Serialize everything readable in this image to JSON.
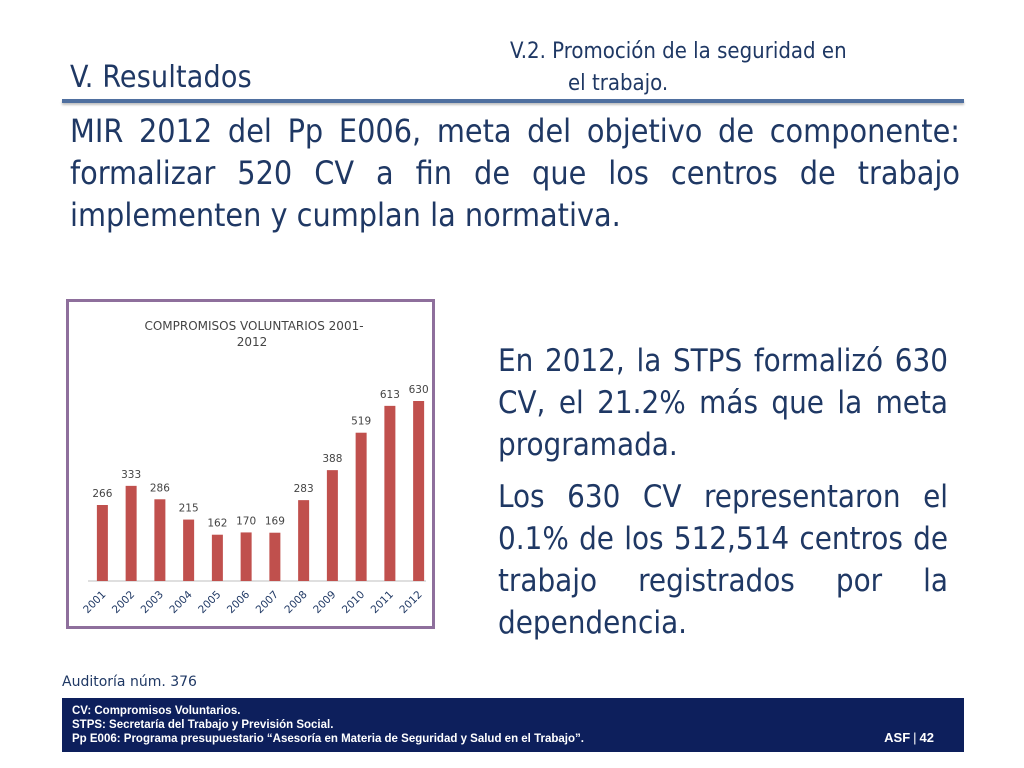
{
  "header": {
    "section_title": "V. Resultados",
    "subtitle_line1": "V.2. Promoción de la seguridad en",
    "subtitle_line2": "el trabajo."
  },
  "lead_text": "MIR 2012 del Pp E006, meta del objetivo de componente: formalizar 520 CV a fin de que los centros de trabajo implementen y cumplan la normativa.",
  "right_text": {
    "p1": "En 2012, la STPS formalizó 630 CV, el 21.2% más que la meta programada.",
    "p2": "Los 630 CV representaron el 0.1% de los 512,514 centros de trabajo registrados por la dependencia."
  },
  "audit_label": "Auditoría núm. 376",
  "footer": {
    "notes": [
      "CV: Compromisos Voluntarios.",
      "STPS: Secretaría del Trabajo y Previsión Social.",
      "Pp E006: Programa presupuestario “Asesoría en Materia de Seguridad y Salud en el Trabajo”."
    ],
    "brand": "ASF",
    "page_number": "42"
  },
  "chart_data": {
    "type": "bar",
    "title_line1": "COMPROMISOS VOLUNTARIOS 2001-",
    "title_line2": "2012",
    "categories": [
      "2001",
      "2002",
      "2003",
      "2004",
      "2005",
      "2006",
      "2007",
      "2008",
      "2009",
      "2010",
      "2011",
      "2012"
    ],
    "values": [
      266,
      333,
      286,
      215,
      162,
      170,
      169,
      283,
      388,
      519,
      613,
      630
    ],
    "ylim": [
      0,
      700
    ],
    "bar_color": "#c0504d",
    "grid": false,
    "legend": "none"
  }
}
